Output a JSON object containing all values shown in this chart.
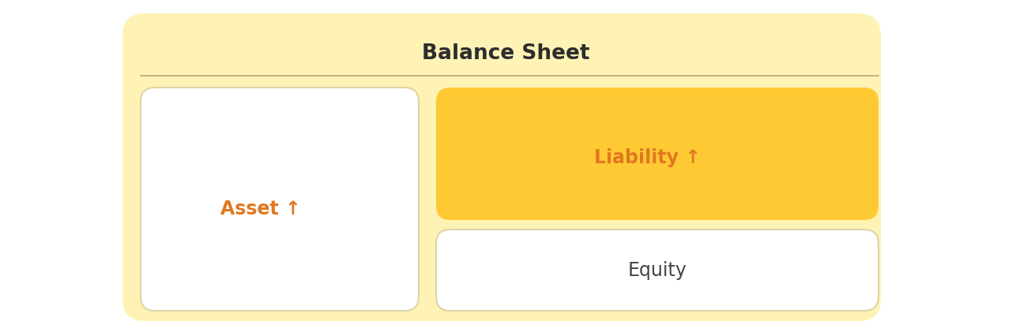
{
  "title": "Balance Sheet",
  "title_fontsize": 19,
  "title_color": "#2d2d2d",
  "title_fontweight": "bold",
  "bg_color": "#fef3b4",
  "divider_color": "#b8a878",
  "asset_label": "Asset ",
  "liability_label": "Liability ",
  "equity_label": "Equity",
  "orange_color": "#e07820",
  "liability_bg": "#ffc933",
  "white_bg": "#ffffff",
  "label_fontsize": 17,
  "equity_fontsize": 17,
  "equity_color": "#444444",
  "arrow": "↑"
}
